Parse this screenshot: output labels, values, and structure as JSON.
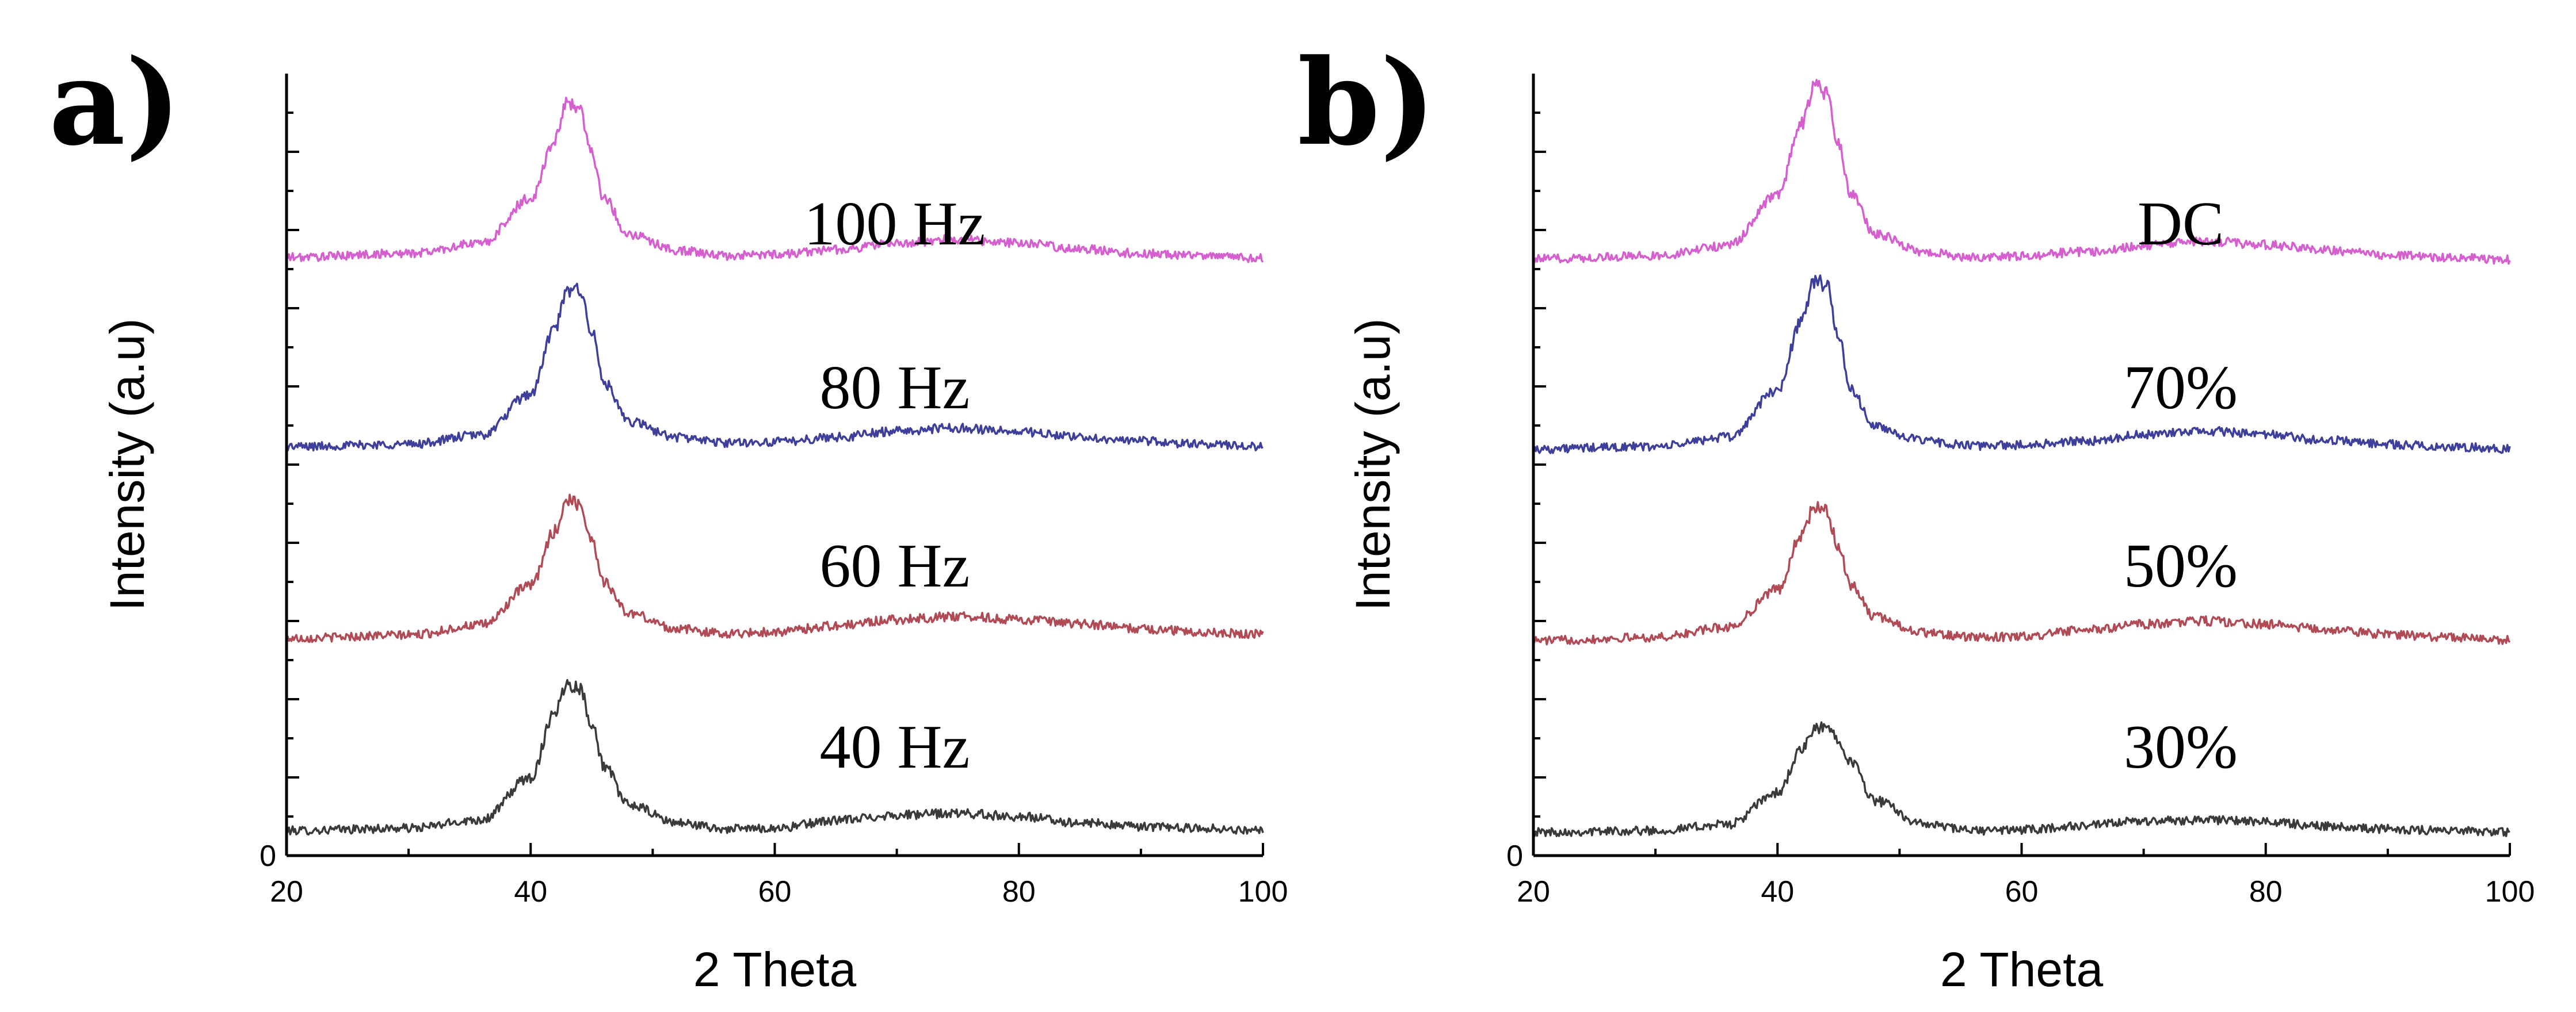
{
  "figure": {
    "panels": [
      {
        "letter": "a)"
      },
      {
        "letter": "b)"
      }
    ]
  },
  "chart_data": [
    {
      "type": "line",
      "panel": "a)",
      "title": "",
      "xlabel": "2 Theta",
      "ylabel": "Intensity (a.u)",
      "xlim": [
        20,
        100
      ],
      "xticks": [
        "20",
        "40",
        "60",
        "80",
        "100"
      ],
      "ylim": [
        0,
        100
      ],
      "yticks": [
        "0"
      ],
      "grid": false,
      "x": [
        20,
        30,
        36,
        40,
        42,
        43,
        44,
        45,
        46,
        48,
        52,
        56,
        60,
        65,
        70,
        75,
        80,
        85,
        90,
        95,
        100
      ],
      "series": [
        {
          "name": "40 Hz",
          "color": "#3a3a3a",
          "values": [
            3.2,
            3.5,
            4.6,
            10.0,
            18.5,
            22.0,
            21.5,
            17.0,
            11.5,
            6.5,
            4.2,
            3.4,
            3.5,
            4.5,
            5.2,
            5.4,
            5.0,
            4.2,
            3.7,
            3.5,
            3.2
          ]
        },
        {
          "name": "60 Hz",
          "color": "#b04a55",
          "values": [
            27.8,
            28.2,
            29.5,
            34.5,
            41.5,
            45.5,
            45.0,
            40.5,
            35.0,
            31.0,
            29.0,
            28.4,
            28.6,
            29.4,
            30.2,
            30.6,
            30.2,
            29.6,
            29.0,
            28.6,
            28.3
          ]
        },
        {
          "name": "80 Hz",
          "color": "#3d3f9a",
          "values": [
            52.3,
            52.6,
            53.8,
            59.0,
            67.5,
            72.0,
            72.6,
            67.0,
            60.5,
            55.5,
            53.5,
            52.8,
            52.9,
            53.5,
            54.3,
            54.7,
            54.2,
            53.5,
            53.0,
            52.6,
            52.3
          ]
        },
        {
          "name": "100 Hz",
          "color": "#d65fd0",
          "values": [
            76.5,
            77.0,
            78.3,
            84.0,
            91.5,
            96.5,
            95.5,
            90.0,
            84.0,
            79.5,
            77.4,
            76.7,
            76.9,
            77.5,
            78.3,
            78.8,
            78.3,
            77.6,
            77.0,
            76.7,
            76.4
          ]
        }
      ]
    },
    {
      "type": "line",
      "panel": "b)",
      "title": "",
      "xlabel": "2 Theta",
      "ylabel": "Intensity (a.u)",
      "xlim": [
        20,
        100
      ],
      "xticks": [
        "20",
        "40",
        "60",
        "80",
        "100"
      ],
      "ylim": [
        0,
        100
      ],
      "yticks": [
        "0"
      ],
      "grid": false,
      "x": [
        20,
        30,
        36,
        40,
        42,
        43,
        44,
        45,
        46,
        48,
        52,
        56,
        60,
        65,
        70,
        75,
        80,
        85,
        90,
        95,
        100
      ],
      "series": [
        {
          "name": "30%",
          "color": "#3a3a3a",
          "values": [
            3.0,
            3.2,
            4.0,
            8.0,
            13.5,
            16.0,
            16.5,
            15.0,
            12.0,
            7.0,
            4.0,
            3.2,
            3.3,
            3.8,
            4.4,
            4.6,
            4.3,
            3.8,
            3.4,
            3.2,
            3.0
          ]
        },
        {
          "name": "50%",
          "color": "#b04a55",
          "values": [
            27.5,
            27.9,
            29.2,
            34.0,
            41.0,
            44.5,
            44.0,
            39.5,
            34.5,
            30.5,
            28.5,
            27.9,
            28.0,
            28.8,
            29.6,
            30.0,
            29.6,
            28.9,
            28.3,
            27.9,
            27.6
          ]
        },
        {
          "name": "70%",
          "color": "#3d3f9a",
          "values": [
            52.0,
            52.3,
            53.5,
            59.5,
            68.5,
            73.5,
            73.0,
            66.5,
            59.5,
            54.8,
            53.0,
            52.4,
            52.5,
            53.0,
            53.8,
            54.3,
            53.8,
            53.1,
            52.6,
            52.3,
            52.0
          ]
        },
        {
          "name": "DC",
          "color": "#d65fd0",
          "values": [
            76.3,
            76.7,
            78.0,
            84.5,
            93.5,
            98.5,
            97.5,
            91.0,
            84.5,
            79.5,
            77.2,
            76.5,
            76.7,
            77.2,
            78.0,
            78.6,
            78.1,
            77.4,
            76.8,
            76.5,
            76.2
          ]
        }
      ]
    }
  ]
}
